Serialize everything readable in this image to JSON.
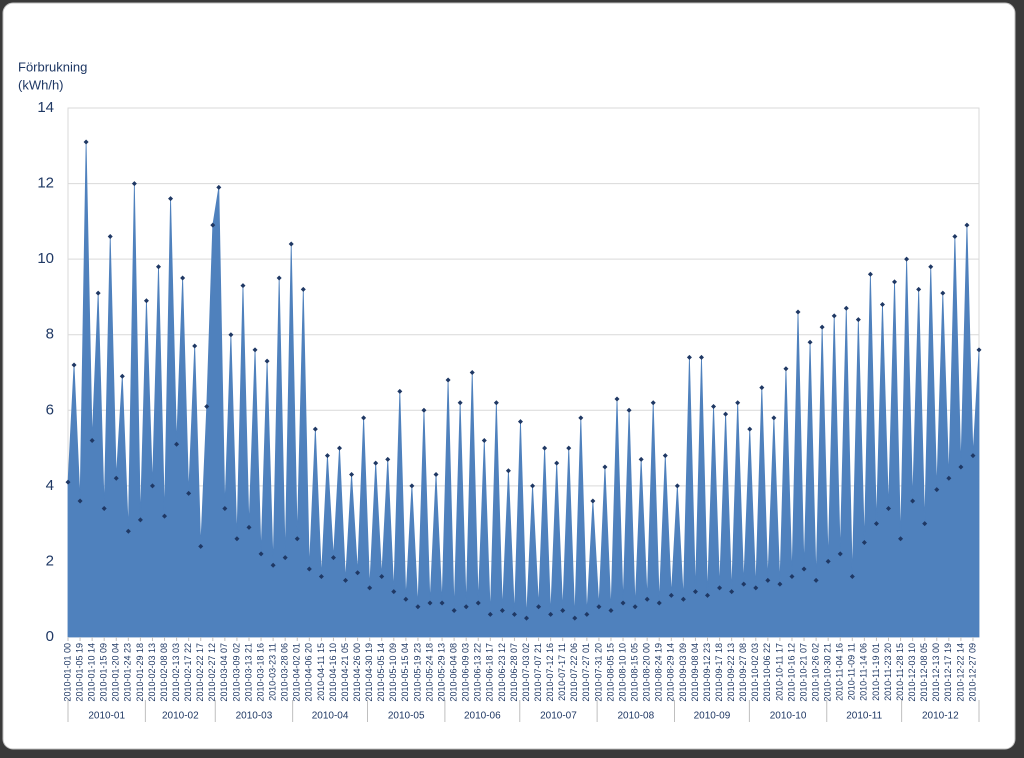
{
  "chart_data": {
    "type": "area",
    "y_axis_label": [
      "Förbrukning",
      "(kWh/h)"
    ],
    "categories": [
      "2010-01-01 00",
      null,
      "2010-01-05 19",
      null,
      "2010-01-10 14",
      null,
      "2010-01-15 09",
      null,
      "2010-01-20 04",
      null,
      "2010-01-24 23",
      null,
      "2010-01-29 18",
      null,
      "2010-02-03 13",
      null,
      "2010-02-08 08",
      null,
      "2010-02-13 03",
      null,
      "2010-02-17 22",
      null,
      "2010-02-22 17",
      null,
      "2010-02-27 12",
      null,
      "2010-03-04 07",
      null,
      "2010-03-09 02",
      null,
      "2010-03-13 21",
      null,
      "2010-03-18 16",
      null,
      "2010-03-23 11",
      null,
      "2010-03-28 06",
      null,
      "2010-04-02 01",
      null,
      "2010-04-06 20",
      null,
      "2010-04-11 15",
      null,
      "2010-04-16 10",
      null,
      "2010-04-21 05",
      null,
      "2010-04-26 00",
      null,
      "2010-04-30 19",
      null,
      "2010-05-05 14",
      null,
      "2010-05-10 09",
      null,
      "2010-05-15 04",
      null,
      "2010-05-19 23",
      null,
      "2010-05-24 18",
      null,
      "2010-05-29 13",
      null,
      "2010-06-04 08",
      null,
      "2010-06-09 03",
      null,
      "2010-06-13 22",
      null,
      "2010-06-18 17",
      null,
      "2010-06-23 12",
      null,
      "2010-06-28 07",
      null,
      "2010-07-03 02",
      null,
      "2010-07-07 21",
      null,
      "2010-07-12 16",
      null,
      "2010-07-17 11",
      null,
      "2010-07-22 06",
      null,
      "2010-07-27 01",
      null,
      "2010-07-31 20",
      null,
      "2010-08-05 15",
      null,
      "2010-08-10 10",
      null,
      "2010-08-15 05",
      null,
      "2010-08-20 00",
      null,
      "2010-08-24 19",
      null,
      "2010-08-29 14",
      null,
      "2010-09-03 09",
      null,
      "2010-09-08 04",
      null,
      "2010-09-12 23",
      null,
      "2010-09-17 18",
      null,
      "2010-09-22 13",
      null,
      "2010-09-27 08",
      null,
      "2010-10-02 03",
      null,
      "2010-10-06 22",
      null,
      "2010-10-11 17",
      null,
      "2010-10-16 12",
      null,
      "2010-10-21 07",
      null,
      "2010-10-26 02",
      null,
      "2010-10-30 21",
      null,
      "2010-11-04 16",
      null,
      "2010-11-09 11",
      null,
      "2010-11-14 06",
      null,
      "2010-11-19 01",
      null,
      "2010-11-23 20",
      null,
      "2010-11-28 15",
      null,
      "2010-12-03 10",
      null,
      "2010-12-08 05",
      null,
      "2010-12-13 00",
      null,
      "2010-12-17 19",
      null,
      "2010-12-22 14",
      null,
      "2010-12-27 09",
      null
    ],
    "months": [
      "2010-01",
      "2010-02",
      "2010-03",
      "2010-04",
      "2010-05",
      "2010-06",
      "2010-07",
      "2010-08",
      "2010-09",
      "2010-10",
      "2010-11",
      "2010-12"
    ],
    "values": [
      4.1,
      7.2,
      3.6,
      13.1,
      5.2,
      9.1,
      3.4,
      10.6,
      4.2,
      6.9,
      2.8,
      12.0,
      3.1,
      8.9,
      4.0,
      9.8,
      3.2,
      11.6,
      5.1,
      9.5,
      3.8,
      7.7,
      2.4,
      6.1,
      10.9,
      11.9,
      3.4,
      8.0,
      2.6,
      9.3,
      2.9,
      7.6,
      2.2,
      7.3,
      1.9,
      9.5,
      2.1,
      10.4,
      2.6,
      9.2,
      1.8,
      5.5,
      1.6,
      4.8,
      2.1,
      5.0,
      1.5,
      4.3,
      1.7,
      5.8,
      1.3,
      4.6,
      1.6,
      4.7,
      1.2,
      6.5,
      1.0,
      4.0,
      0.8,
      6.0,
      0.9,
      4.3,
      0.9,
      6.8,
      0.7,
      6.2,
      0.8,
      7.0,
      0.9,
      5.2,
      0.6,
      6.2,
      0.7,
      4.4,
      0.6,
      5.7,
      0.5,
      4.0,
      0.8,
      5.0,
      0.6,
      4.6,
      0.7,
      5.0,
      0.5,
      5.8,
      0.6,
      3.6,
      0.8,
      4.5,
      0.7,
      6.3,
      0.9,
      6.0,
      0.8,
      4.7,
      1.0,
      6.2,
      0.9,
      4.8,
      1.1,
      4.0,
      1.0,
      7.4,
      1.2,
      7.4,
      1.1,
      6.1,
      1.3,
      5.9,
      1.2,
      6.2,
      1.4,
      5.5,
      1.3,
      6.6,
      1.5,
      5.8,
      1.4,
      7.1,
      1.6,
      8.6,
      1.8,
      7.8,
      1.5,
      8.2,
      2.0,
      8.5,
      2.2,
      8.7,
      1.6,
      8.4,
      2.5,
      9.6,
      3.0,
      8.8,
      3.4,
      9.4,
      2.6,
      10.0,
      3.6,
      9.2,
      3.0,
      9.8,
      3.9,
      9.1,
      4.2,
      10.6,
      4.5,
      10.9,
      4.8,
      7.6
    ],
    "color": "#4f81bd",
    "marker_color": "#1f3864",
    "ylim": [
      0,
      14
    ],
    "yticks": [
      0,
      2,
      4,
      6,
      8,
      10,
      12,
      14
    ],
    "grid": true
  }
}
